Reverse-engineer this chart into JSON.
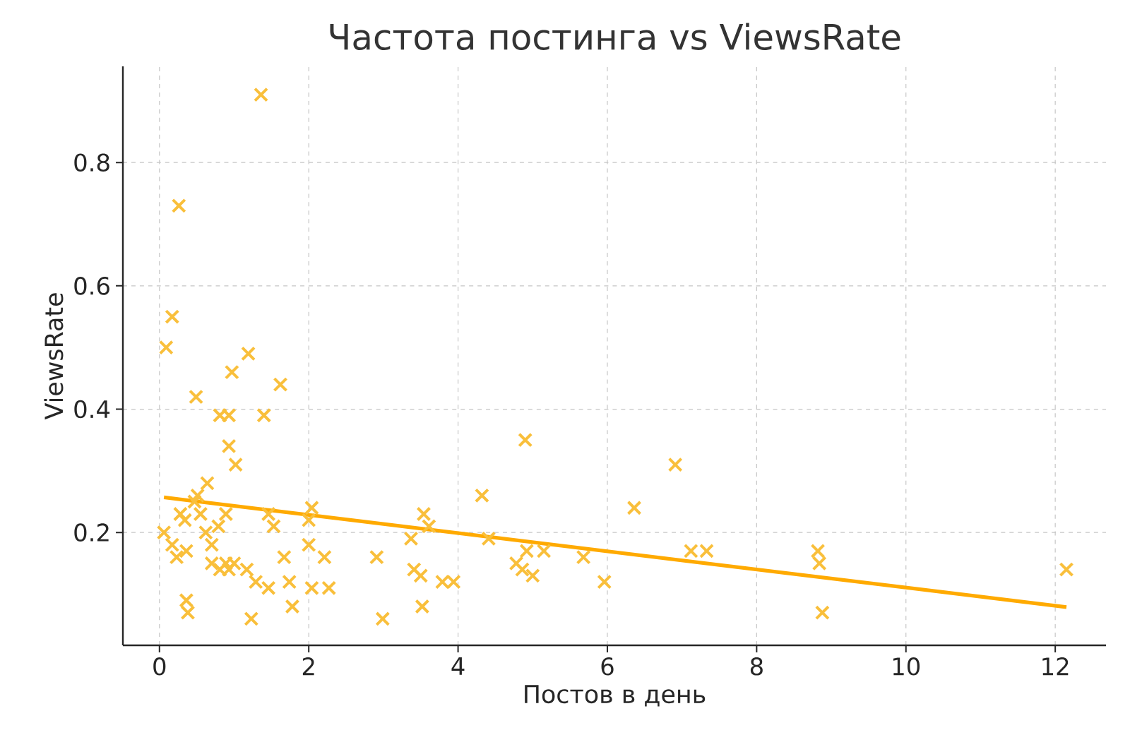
{
  "chart_data": {
    "type": "scatter",
    "title": "Частота постинга vs ViewsRate",
    "xlabel": "Постов в день",
    "ylabel": "ViewsRate",
    "xlim": [
      -0.49,
      12.68
    ],
    "ylim": [
      0.017,
      0.956
    ],
    "xticks": [
      0,
      2,
      4,
      6,
      8,
      10,
      12
    ],
    "yticks": [
      0.2,
      0.4,
      0.6,
      0.8
    ],
    "grid": true,
    "marker": "cross",
    "series": [
      {
        "color": "#f9bf3b",
        "x": [
          1.36,
          0.26,
          0.17,
          0.09,
          1.19,
          0.97,
          1.62,
          0.49,
          1.4,
          0.81,
          0.93,
          0.93,
          1.02,
          0.64,
          4.9,
          6.91,
          6.36,
          4.32,
          3.54,
          3.61,
          2.04,
          2.0,
          1.46,
          1.53,
          0.51,
          0.47,
          0.28,
          0.34,
          0.17,
          0.62,
          0.79,
          0.89,
          0.23,
          0.36,
          0.7,
          0.81,
          0.89,
          0.93,
          0.36,
          0.38,
          1.17,
          1.29,
          1.23,
          1.46,
          1.74,
          1.78,
          2.0,
          2.21,
          2.04,
          2.27,
          2.91,
          2.99,
          3.37,
          3.41,
          3.5,
          3.52,
          3.79,
          3.94,
          4.41,
          4.78,
          4.86,
          5.0,
          4.92,
          5.15,
          5.68,
          5.96,
          7.12,
          7.33,
          8.82,
          8.84,
          8.88,
          12.15,
          1.0,
          1.67,
          0.7,
          0.55,
          0.06
        ],
        "values": [
          0.91,
          0.73,
          0.55,
          0.5,
          0.49,
          0.46,
          0.44,
          0.42,
          0.39,
          0.39,
          0.39,
          0.34,
          0.31,
          0.28,
          0.35,
          0.31,
          0.24,
          0.26,
          0.23,
          0.21,
          0.24,
          0.22,
          0.23,
          0.21,
          0.26,
          0.25,
          0.23,
          0.22,
          0.18,
          0.2,
          0.21,
          0.23,
          0.16,
          0.17,
          0.15,
          0.14,
          0.15,
          0.14,
          0.09,
          0.07,
          0.14,
          0.12,
          0.06,
          0.11,
          0.12,
          0.08,
          0.18,
          0.16,
          0.11,
          0.11,
          0.16,
          0.06,
          0.19,
          0.14,
          0.13,
          0.08,
          0.12,
          0.12,
          0.19,
          0.15,
          0.14,
          0.13,
          0.17,
          0.17,
          0.16,
          0.12,
          0.17,
          0.17,
          0.17,
          0.15,
          0.07,
          0.14,
          0.15,
          0.16,
          0.18,
          0.23,
          0.2
        ]
      },
      {
        "type": "line",
        "marker": "none",
        "color": "#ffaa00",
        "x": [
          0.06,
          12.15
        ],
        "values": [
          0.257,
          0.079
        ]
      }
    ]
  }
}
